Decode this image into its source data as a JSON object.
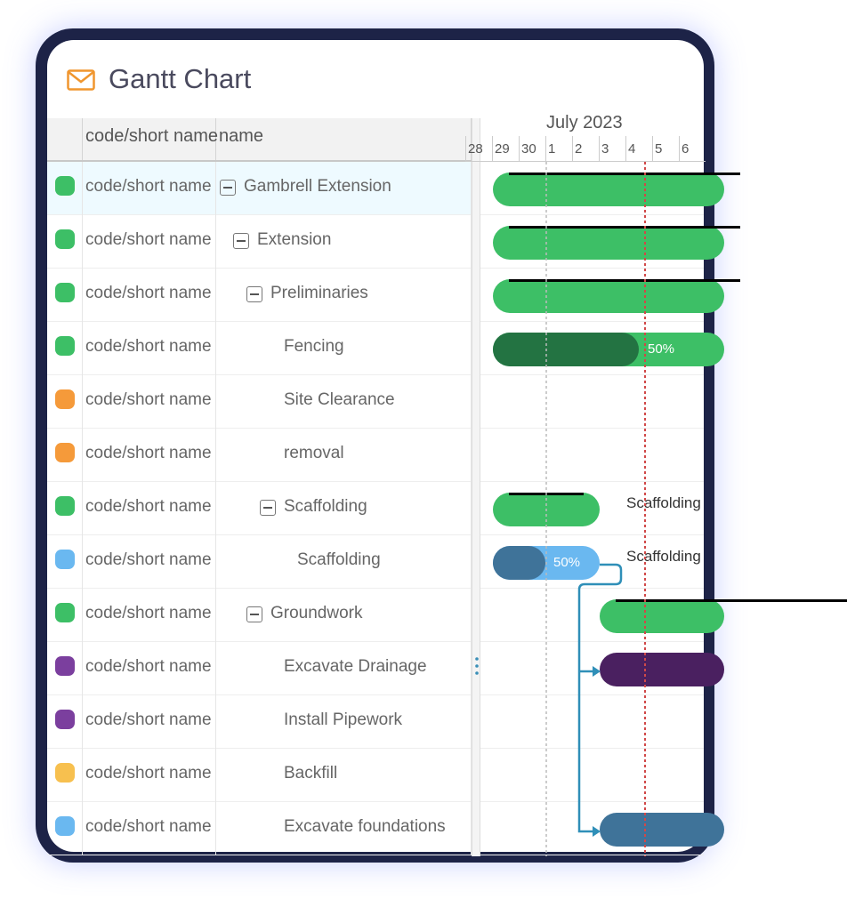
{
  "header": {
    "title": "Gantt Chart"
  },
  "grid": {
    "columns": [
      "code/short name",
      "name"
    ],
    "rows": [
      {
        "code": "code/short name",
        "name": "Gambrell Extension"
      },
      {
        "code": "code/short name",
        "name": "Extension"
      },
      {
        "code": "code/short name",
        "name": "Preliminaries"
      },
      {
        "code": "code/short name",
        "name": "Fencing",
        "progress": "50%"
      },
      {
        "code": "code/short name",
        "name": "Site Clearance"
      },
      {
        "code": "code/short name",
        "name": "removal"
      },
      {
        "code": "code/short name",
        "name": "Scaffolding",
        "caption": "Scaffolding"
      },
      {
        "code": "code/short name",
        "name": "Scaffolding",
        "progress": "50%",
        "caption": "Scaffolding"
      },
      {
        "code": "code/short name",
        "name": "Groundwork"
      },
      {
        "code": "code/short name",
        "name": "Excavate Drainage"
      },
      {
        "code": "code/short name",
        "name": "Install Pipework"
      },
      {
        "code": "code/short name",
        "name": "Backfill"
      },
      {
        "code": "code/short name",
        "name": "Excavate foundations"
      }
    ]
  },
  "timeline": {
    "month": "July 2023",
    "days": [
      "28",
      "29",
      "30",
      "1",
      "2",
      "3",
      "4",
      "5",
      "6"
    ]
  }
}
